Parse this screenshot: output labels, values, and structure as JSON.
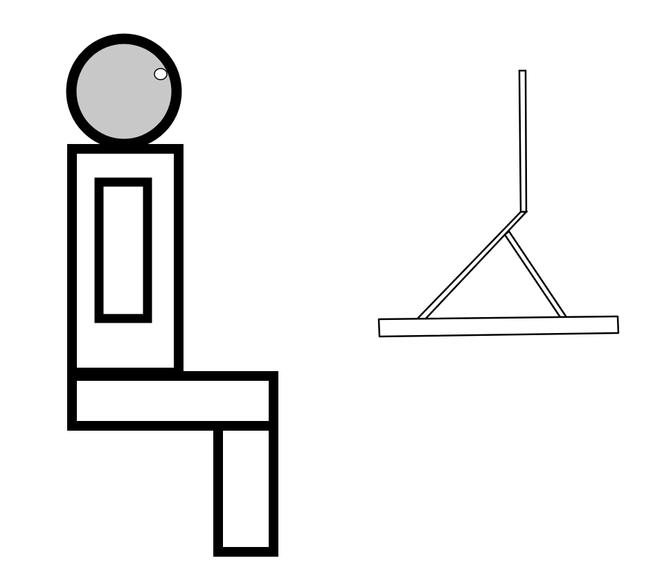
{
  "figure": {
    "subjects": [
      "seated-figure",
      "laptop-stand"
    ]
  },
  "colors": {
    "background": "#ffffff",
    "outline": "#000000",
    "head_fill": "#c8c8c8",
    "highlight": "#ffffff",
    "body_fill": "#ffffff"
  }
}
